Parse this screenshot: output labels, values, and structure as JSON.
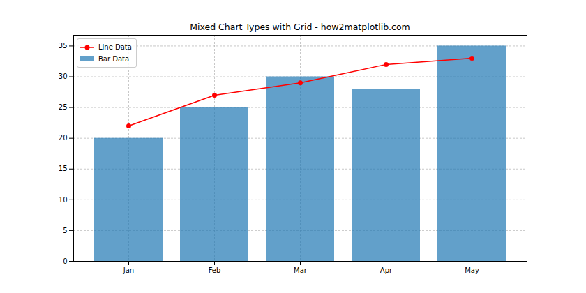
{
  "chart_data": {
    "type": "bar",
    "title": "Mixed Chart Types with Grid - how2matplotlib.com",
    "categories": [
      "Jan",
      "Feb",
      "Mar",
      "Apr",
      "May"
    ],
    "series": [
      {
        "name": "Line Data",
        "type": "line",
        "color": "red",
        "marker": "circle",
        "values": [
          22,
          27,
          29,
          32,
          33
        ]
      },
      {
        "name": "Bar Data",
        "type": "bar",
        "color": "#1f77b4",
        "values": [
          20,
          25,
          30,
          28,
          35
        ]
      }
    ],
    "ylim": [
      0,
      36.75
    ],
    "yticks": [
      0,
      5,
      10,
      15,
      20,
      25,
      30,
      35
    ],
    "grid": true,
    "legend": "upper left"
  }
}
